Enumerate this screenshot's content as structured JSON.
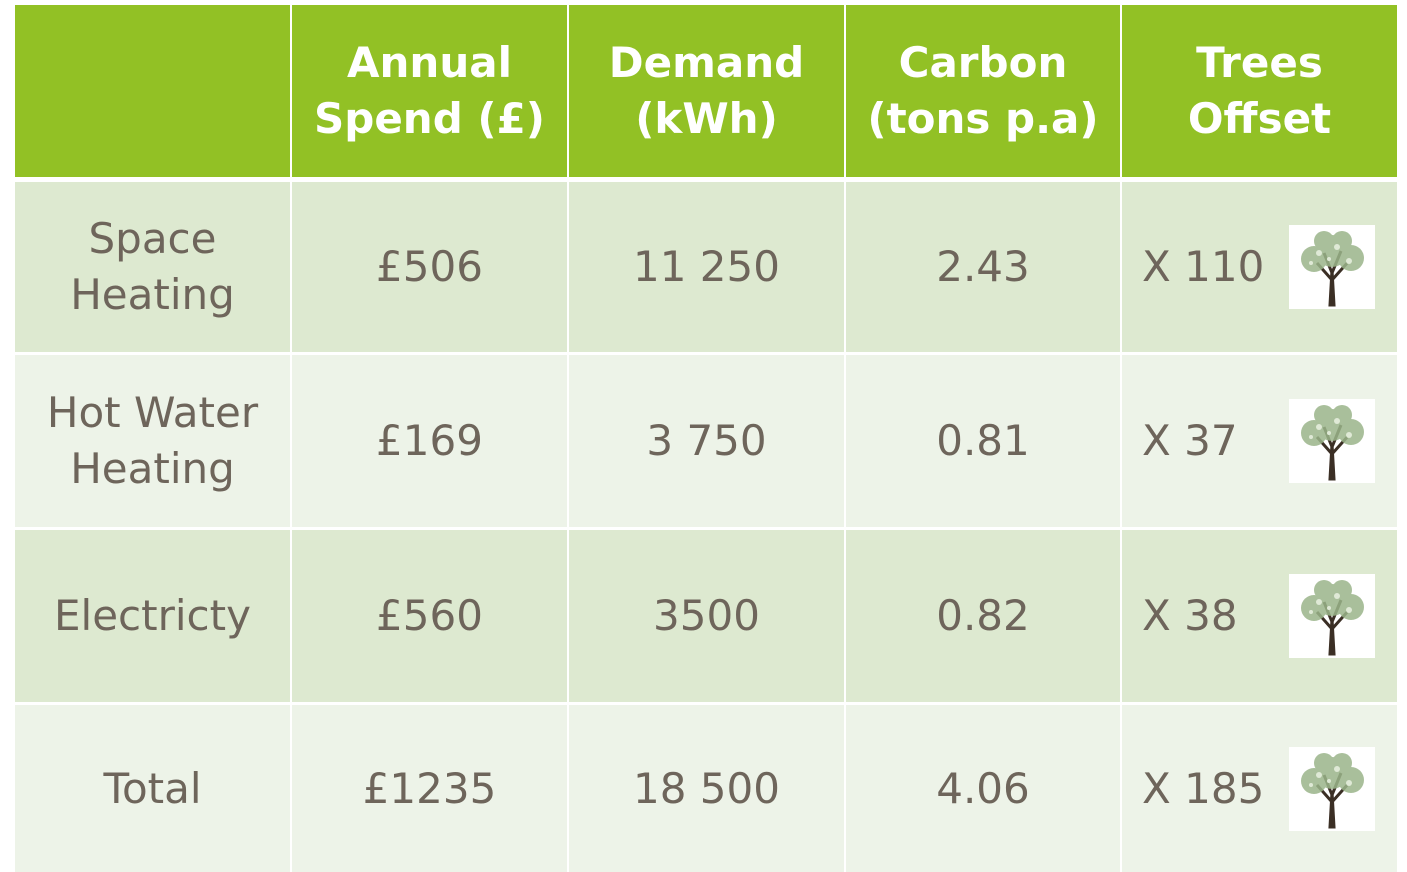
{
  "table": {
    "header": [
      [],
      [
        "Annual",
        "Spend (£)"
      ],
      [
        "Demand",
        "(kWh)"
      ],
      [
        "Carbon",
        "(tons p.a)"
      ],
      [
        "Trees",
        "Offset"
      ]
    ],
    "rows": [
      [
        [
          "Space",
          "Heating"
        ],
        "£506",
        "11 250",
        "2.43",
        "X 110"
      ],
      [
        [
          "Hot Water",
          "Heating"
        ],
        "£169",
        "3 750",
        "0.81",
        "X 37"
      ],
      [
        [
          "Electricty"
        ],
        "£560",
        "3500",
        "0.82",
        "X 38"
      ],
      [
        [
          "Total"
        ],
        "£1235",
        "18 500",
        "4.06",
        "X 185"
      ]
    ]
  }
}
